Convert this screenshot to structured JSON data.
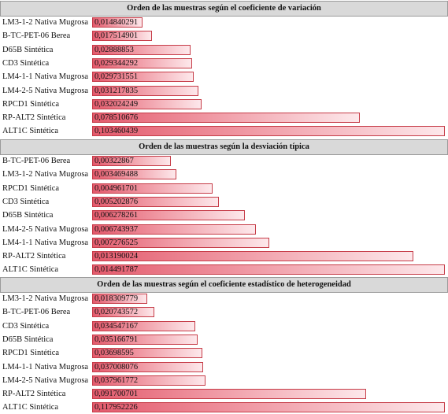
{
  "colors": {
    "header_bg": "#d9d9d9",
    "bar_start": "#e35a6c",
    "bar_end": "#fde8eb",
    "bar_border": "#c63c48"
  },
  "chart_data": [
    {
      "type": "bar",
      "orientation": "horizontal",
      "title": "Orden de las muestras según el coeficiente de variación",
      "categories": [
        "LM3-1-2 Nativa Mugrosa",
        "B-TC-PET-06 Berea",
        "D65B Sintética",
        "CD3 Sintética",
        "LM4-1-1 Nativa Mugrosa",
        "LM4-2-5 Nativa Mugrosa",
        "RPCD1 Sintética",
        "RP-ALT2 Sintética",
        "ALT1C Sintética"
      ],
      "labels": [
        "0,014840291",
        "0,017514901",
        "0,02888853",
        "0,029344292",
        "0,029731551",
        "0,031217835",
        "0,032024249",
        "0,078510676",
        "0,103460439"
      ],
      "values": [
        0.014840291,
        0.017514901,
        0.02888853,
        0.029344292,
        0.029731551,
        0.031217835,
        0.032024249,
        0.078510676,
        0.103460439
      ]
    },
    {
      "type": "bar",
      "orientation": "horizontal",
      "title": "Orden de las muestras según la desviación típica",
      "categories": [
        "B-TC-PET-06 Berea",
        "LM3-1-2 Nativa Mugrosa",
        "RPCD1 Sintética",
        "CD3 Sintética",
        "D65B Sintética",
        "LM4-2-5 Nativa Mugrosa",
        "LM4-1-1 Nativa Mugrosa",
        "RP-ALT2 Sintética",
        "ALT1C Sintética"
      ],
      "labels": [
        "0,00322867",
        "0,003469488",
        "0,004961701",
        "0,005202876",
        "0,006278261",
        "0,006743937",
        "0,007276525",
        "0,013190024",
        "0,014491787"
      ],
      "values": [
        0.00322867,
        0.003469488,
        0.004961701,
        0.005202876,
        0.006278261,
        0.006743937,
        0.007276525,
        0.013190024,
        0.014491787
      ]
    },
    {
      "type": "bar",
      "orientation": "horizontal",
      "title": "Orden de las muestras según el coeficiente estadístico de heterogeneidad",
      "categories": [
        "LM3-1-2 Nativa Mugrosa",
        "B-TC-PET-06 Berea",
        "CD3 Sintética",
        "D65B Sintética",
        "RPCD1 Sintética",
        "LM4-1-1 Nativa Mugrosa",
        "LM4-2-5 Nativa Mugrosa",
        "RP-ALT2 Sintética",
        "ALT1C Sintética"
      ],
      "labels": [
        "0,018309779",
        "0,020743572",
        "0,034547167",
        "0,035166791",
        "0,03698595",
        "0,037008076",
        "0,037961772",
        "0,091700701",
        "0,117952226"
      ],
      "values": [
        0.018309779,
        0.020743572,
        0.034547167,
        0.035166791,
        0.03698595,
        0.037008076,
        0.037961772,
        0.091700701,
        0.117952226
      ]
    }
  ]
}
